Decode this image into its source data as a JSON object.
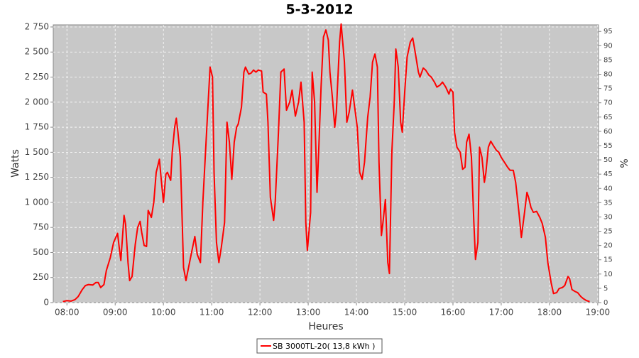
{
  "chart_data": {
    "type": "line",
    "title": "5-3-2012",
    "xlabel": "Heures",
    "ylabel": "Watts",
    "y2label": "%",
    "xlim": [
      463,
      1141
    ],
    "xticks": [
      {
        "value": 480,
        "label": "08:00"
      },
      {
        "value": 540,
        "label": "09:00"
      },
      {
        "value": 600,
        "label": "10:00"
      },
      {
        "value": 660,
        "label": "11:00"
      },
      {
        "value": 720,
        "label": "12:00"
      },
      {
        "value": 780,
        "label": "13:00"
      },
      {
        "value": 840,
        "label": "14:00"
      },
      {
        "value": 900,
        "label": "15:00"
      },
      {
        "value": 960,
        "label": "16:00"
      },
      {
        "value": 1020,
        "label": "17:00"
      },
      {
        "value": 1080,
        "label": "18:00"
      },
      {
        "value": 1140,
        "label": "19:00"
      }
    ],
    "ylim": [
      0,
      2771
    ],
    "yticks": [
      0,
      250,
      500,
      750,
      {
        "value": 1000,
        "label": "1 000"
      },
      {
        "value": 1250,
        "label": "1 250"
      },
      {
        "value": 1500,
        "label": "1 500"
      },
      {
        "value": 1750,
        "label": "1 750"
      },
      {
        "value": 2000,
        "label": "2 000"
      },
      {
        "value": 2250,
        "label": "2 250"
      },
      {
        "value": 2500,
        "label": "2 500"
      },
      {
        "value": 2750,
        "label": "2 750"
      }
    ],
    "y2lim": [
      0,
      97.3
    ],
    "y2ticks": [
      0,
      5,
      10,
      15,
      20,
      25,
      30,
      35,
      40,
      45,
      50,
      55,
      60,
      65,
      70,
      75,
      80,
      85,
      90,
      95
    ],
    "grid": true,
    "legend": "bottom",
    "x": [
      475,
      480,
      485,
      490,
      494,
      499,
      503,
      507,
      512,
      516,
      519,
      522,
      526,
      529,
      534,
      538,
      543,
      545,
      547,
      551,
      553,
      556,
      558,
      561,
      565,
      568,
      571,
      573,
      576,
      579,
      581,
      585,
      588,
      591,
      595,
      597,
      600,
      603,
      605,
      609,
      611,
      614,
      616,
      618,
      621,
      625,
      628,
      632,
      635,
      639,
      642,
      646,
      649,
      653,
      656,
      658,
      661,
      663,
      666,
      669,
      672,
      676,
      679,
      682,
      685,
      688,
      691,
      693,
      697,
      700,
      702,
      706,
      709,
      712,
      715,
      718,
      722,
      724,
      728,
      730,
      733,
      737,
      739,
      743,
      746,
      750,
      753,
      757,
      760,
      764,
      768,
      771,
      775,
      777,
      779,
      783,
      785,
      788,
      791,
      793,
      796,
      799,
      802,
      805,
      807,
      810,
      813,
      815,
      819,
      821,
      825,
      828,
      831,
      835,
      837,
      841,
      844,
      847,
      850,
      854,
      857,
      860,
      863,
      866,
      868,
      871,
      873,
      876,
      879,
      881,
      884,
      887,
      889,
      892,
      895,
      897,
      900,
      903,
      907,
      910,
      913,
      917,
      919,
      923,
      926,
      930,
      933,
      937,
      940,
      944,
      947,
      951,
      955,
      957,
      960,
      962,
      965,
      969,
      972,
      975,
      977,
      980,
      983,
      986,
      988,
      991,
      993,
      996,
      999,
      1001,
      1004,
      1007,
      1010,
      1014,
      1017,
      1020,
      1024,
      1028,
      1031,
      1035,
      1038,
      1042,
      1045,
      1049,
      1052,
      1054,
      1057,
      1060,
      1064,
      1068,
      1071,
      1075,
      1078,
      1082,
      1085,
      1089,
      1092,
      1096,
      1099,
      1103,
      1105,
      1108,
      1112,
      1115,
      1119,
      1122,
      1126,
      1130
    ],
    "series": [
      {
        "name": "SB 3000TL-20( 13,8 kWh )",
        "color": "#ff0000",
        "values": [
          10,
          20,
          15,
          30,
          60,
          130,
          170,
          180,
          175,
          200,
          200,
          150,
          180,
          320,
          450,
          600,
          690,
          550,
          420,
          870,
          780,
          400,
          220,
          260,
          580,
          750,
          810,
          700,
          570,
          560,
          920,
          850,
          1000,
          1300,
          1430,
          1250,
          1000,
          1280,
          1300,
          1220,
          1500,
          1750,
          1840,
          1700,
          1450,
          350,
          220,
          380,
          500,
          660,
          480,
          400,
          1000,
          1600,
          2050,
          2350,
          2250,
          1300,
          600,
          400,
          550,
          800,
          1800,
          1600,
          1230,
          1600,
          1750,
          1780,
          1950,
          2300,
          2350,
          2280,
          2290,
          2320,
          2300,
          2320,
          2310,
          2100,
          2080,
          1800,
          1050,
          820,
          1000,
          1700,
          2300,
          2330,
          1920,
          2000,
          2120,
          1860,
          2000,
          2200,
          1800,
          800,
          520,
          900,
          2300,
          2000,
          1100,
          1500,
          2150,
          2650,
          2720,
          2620,
          2300,
          2050,
          1750,
          1900,
          2600,
          2780,
          2400,
          1800,
          1900,
          2120,
          2000,
          1750,
          1300,
          1230,
          1400,
          1850,
          2050,
          2400,
          2480,
          2350,
          1400,
          670,
          800,
          1030,
          400,
          290,
          1500,
          2000,
          2530,
          2350,
          1800,
          1700,
          2100,
          2450,
          2600,
          2640,
          2500,
          2300,
          2250,
          2340,
          2320,
          2270,
          2250,
          2200,
          2150,
          2170,
          2200,
          2150,
          2080,
          2130,
          2100,
          1700,
          1550,
          1500,
          1330,
          1350,
          1600,
          1680,
          1450,
          800,
          430,
          600,
          1550,
          1450,
          1200,
          1300,
          1550,
          1610,
          1570,
          1520,
          1500,
          1450,
          1400,
          1350,
          1320,
          1320,
          1200,
          900,
          650,
          900,
          1100,
          1050,
          950,
          900,
          910,
          850,
          790,
          650,
          400,
          200,
          90,
          100,
          140,
          150,
          170,
          260,
          240,
          130,
          110,
          100,
          60,
          40,
          20,
          10
        ]
      }
    ]
  }
}
